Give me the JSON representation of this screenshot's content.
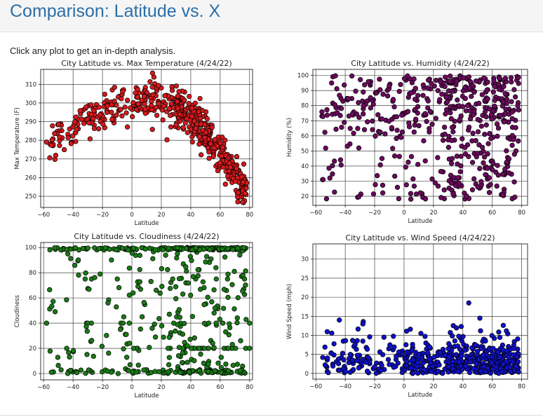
{
  "header": {
    "title": "Comparison: Latitude vs. X"
  },
  "intro": "Click any plot to get an in-depth analysis.",
  "chart_data": [
    {
      "id": "temp",
      "type": "scatter",
      "title": "City Latitude vs. Max Temperature (4/24/22)",
      "xlabel": "Latitude",
      "ylabel": "Max Temperature (F)",
      "xlim": [
        -62,
        82
      ],
      "ylim": [
        244,
        318
      ],
      "xticks": [
        -60,
        -40,
        -20,
        0,
        20,
        40,
        60,
        80
      ],
      "yticks": [
        250,
        260,
        270,
        280,
        290,
        300,
        310
      ],
      "grid": true,
      "color": "#d7191c",
      "trend": [
        [
          -54,
          279
        ],
        [
          -40,
          285
        ],
        [
          -25,
          296
        ],
        [
          -10,
          299
        ],
        [
          5,
          301
        ],
        [
          15,
          303
        ],
        [
          25,
          300
        ],
        [
          35,
          295
        ],
        [
          45,
          287
        ],
        [
          55,
          279
        ],
        [
          65,
          268
        ],
        [
          72,
          258
        ],
        [
          78,
          254
        ]
      ],
      "spread": 5
    },
    {
      "id": "hum",
      "type": "scatter",
      "title": "City Latitude vs. Humidity (4/24/22)",
      "xlabel": "Latitude",
      "ylabel": "Humidity (%)",
      "xlim": [
        -62,
        84
      ],
      "ylim": [
        14,
        104
      ],
      "xticks": [
        -60,
        -40,
        -20,
        0,
        20,
        40,
        60,
        80
      ],
      "yticks": [
        20,
        30,
        40,
        50,
        60,
        70,
        80,
        90,
        100
      ],
      "grid": true,
      "color": "#6b0a5e",
      "range": [
        18,
        100
      ],
      "cluster": 78
    },
    {
      "id": "cloud",
      "type": "scatter",
      "title": "City Latitude vs. Cloudiness (4/24/22)",
      "xlabel": "Latitude",
      "ylabel": "Cloudiness",
      "xlim": [
        -62,
        82
      ],
      "ylim": [
        -5,
        104
      ],
      "xticks": [
        -60,
        -40,
        -20,
        0,
        20,
        40,
        60,
        80
      ],
      "yticks": [
        0,
        20,
        40,
        60,
        80,
        100
      ],
      "grid": true,
      "color": "#1a7a16",
      "range": [
        0,
        100
      ]
    },
    {
      "id": "wind",
      "type": "scatter",
      "title": "City Latitude vs. Wind Speed (4/24/22)",
      "xlabel": "Latitude",
      "ylabel": "Wind Speed (mph)",
      "xlim": [
        -62,
        84
      ],
      "ylim": [
        -1.5,
        34
      ],
      "xticks": [
        -60,
        -40,
        -20,
        0,
        20,
        40,
        60,
        80
      ],
      "yticks": [
        0,
        5,
        10,
        15,
        20,
        25,
        30
      ],
      "grid": true,
      "color": "#1010c8",
      "range": [
        0,
        18.5
      ],
      "typical": 3
    }
  ]
}
